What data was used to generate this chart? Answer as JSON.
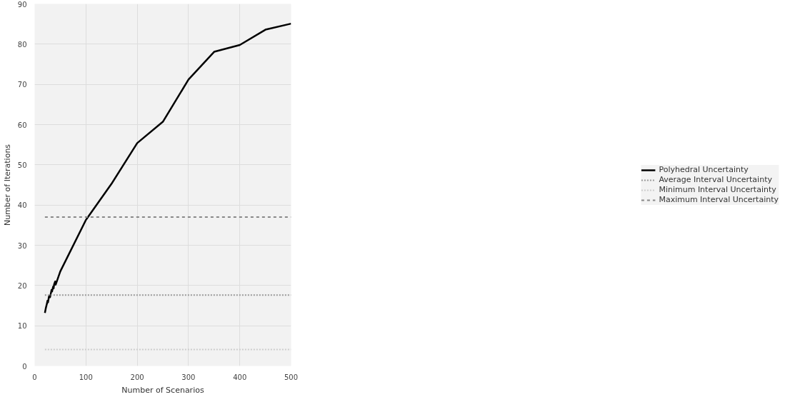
{
  "chart_data": {
    "type": "line",
    "xlabel": "Number of Scenarios",
    "ylabel": "Number of Iterations",
    "xlim": [
      0,
      500
    ],
    "ylim": [
      0,
      90
    ],
    "xticks": [
      0,
      100,
      200,
      300,
      400,
      500
    ],
    "yticks": [
      0,
      10,
      20,
      30,
      40,
      50,
      60,
      70,
      80,
      90
    ],
    "grid": true,
    "legend": "right",
    "series": [
      {
        "name": "Polyhedral Uncertainty",
        "color": "#000000",
        "line_style": "solid",
        "x": [
          20,
          22,
          24,
          25,
          26,
          28,
          30,
          32,
          33,
          34,
          36,
          37,
          38,
          40,
          41,
          50,
          100,
          150,
          200,
          250,
          300,
          350,
          400,
          450,
          500
        ],
        "values": [
          13.2,
          14.5,
          15.5,
          16.2,
          15.8,
          17.3,
          17.1,
          18.3,
          18.9,
          18.5,
          19.7,
          19.3,
          20.3,
          21.0,
          20.2,
          23.5,
          36.3,
          45.3,
          55.4,
          60.7,
          71.2,
          78.1,
          79.8,
          83.6,
          85.1
        ]
      },
      {
        "name": "Average Interval Uncertainty",
        "color": "#999999",
        "line_style": "dotted",
        "x": [
          20,
          500
        ],
        "values": [
          17.6,
          17.6
        ]
      },
      {
        "name": "Minimum Interval Uncertainty",
        "color": "#cccccc",
        "line_style": "dotted",
        "x": [
          20,
          500
        ],
        "values": [
          4.1,
          4.1
        ]
      },
      {
        "name": "Maximum Interval Uncertainty",
        "color": "#888888",
        "line_style": "dashed",
        "x": [
          20,
          500
        ],
        "values": [
          37.0,
          37.0
        ]
      }
    ]
  }
}
